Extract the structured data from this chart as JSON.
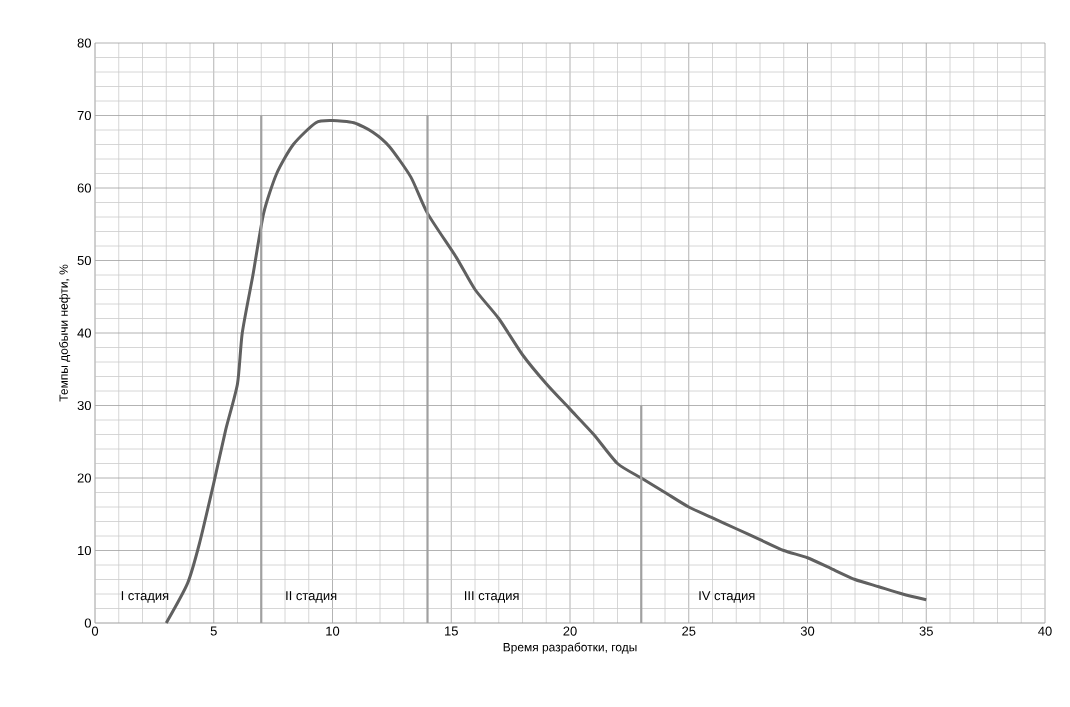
{
  "chart_data": {
    "type": "line",
    "xlabel": "Время разработки, годы",
    "ylabel": "Темпы  добычи  нефти, %",
    "xlim": [
      0,
      40
    ],
    "ylim": [
      0,
      80
    ],
    "xticks": [
      0,
      5,
      10,
      15,
      20,
      25,
      30,
      35,
      40
    ],
    "yticks": [
      0,
      10,
      20,
      30,
      40,
      50,
      60,
      70,
      80
    ],
    "grid": true,
    "series": [
      {
        "color": "#606060",
        "x": [
          3.0,
          3.9,
          4.4,
          5.0,
          5.5,
          6.0,
          6.2,
          6.65,
          7.1,
          7.65,
          8.35,
          9.3,
          10.0,
          10.9,
          11.7,
          12.4,
          13.3,
          14.0,
          15.2,
          16.0,
          17.0,
          18.0,
          19.0,
          20.0,
          21.0,
          22.0,
          23.0,
          24.0,
          25.0,
          26.0,
          27.0,
          28.0,
          29.0,
          30.0,
          31.0,
          32.0,
          33.0,
          34.0,
          35.0
        ],
        "values": [
          0,
          5.5,
          11,
          19.3,
          26.6,
          33,
          40,
          48,
          56.5,
          62,
          66,
          69,
          69.3,
          69,
          67.7,
          65.7,
          61.5,
          56.5,
          50.5,
          46,
          42,
          37,
          33,
          29.5,
          26,
          22,
          20,
          18,
          16,
          14.5,
          13,
          11.5,
          10,
          9,
          7.5,
          6,
          5,
          4,
          3.2
        ]
      },
      {
        "type": "line",
        "color": "#a0a0a0",
        "x": [
          7,
          7
        ],
        "values": [
          0,
          70
        ]
      },
      {
        "type": "line",
        "color": "#a0a0a0",
        "x": [
          14,
          14
        ],
        "values": [
          0,
          70
        ]
      },
      {
        "type": "line",
        "color": "#a0a0a0",
        "x": [
          23,
          23
        ],
        "values": [
          0,
          30
        ]
      }
    ],
    "annotations": [
      "I стадия",
      "II стадия",
      "III стадия",
      "IV стадия"
    ]
  }
}
